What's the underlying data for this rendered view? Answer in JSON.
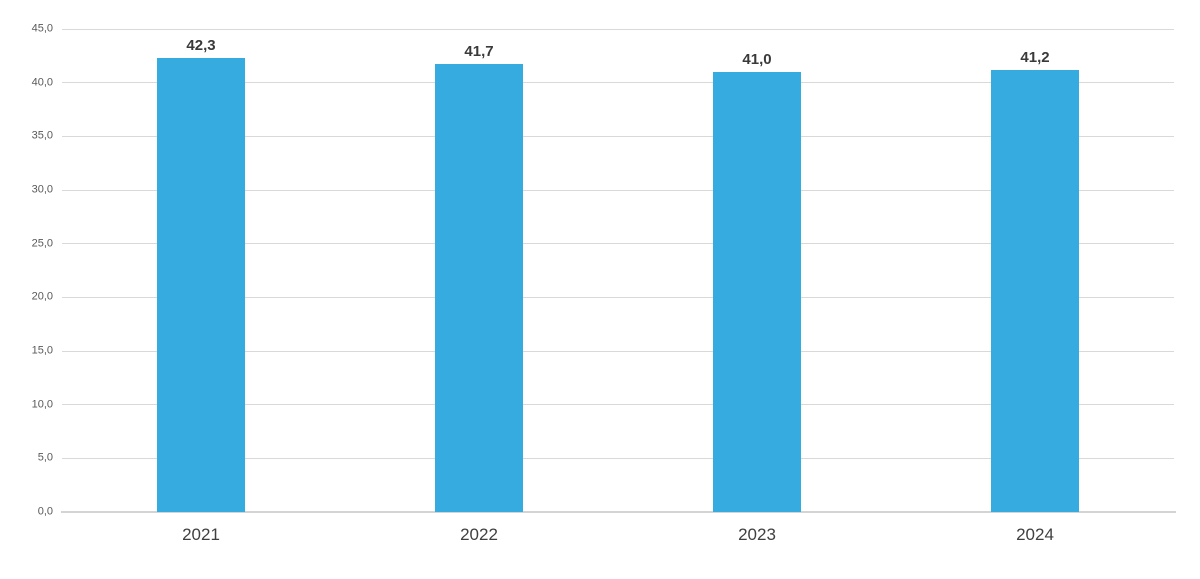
{
  "chart_data": {
    "type": "bar",
    "title": "",
    "xlabel": "",
    "ylabel": "",
    "categories": [
      "2021",
      "2022",
      "2023",
      "2024"
    ],
    "values": [
      42.3,
      41.7,
      41.0,
      41.2
    ],
    "value_labels": [
      "42,3",
      "41,7",
      "41,0",
      "41,2"
    ],
    "ylim": [
      0,
      45
    ],
    "y_tick_step": 5,
    "y_ticks": [
      {
        "value": 0,
        "label": "0,0"
      },
      {
        "value": 5,
        "label": "5,0"
      },
      {
        "value": 10,
        "label": "10,0"
      },
      {
        "value": 15,
        "label": "15,0"
      },
      {
        "value": 20,
        "label": "20,0"
      },
      {
        "value": 25,
        "label": "25,0"
      },
      {
        "value": 30,
        "label": "30,0"
      },
      {
        "value": 35,
        "label": "35,0"
      },
      {
        "value": 40,
        "label": "40,0"
      },
      {
        "value": 45,
        "label": "45,0"
      }
    ],
    "grid": "horizontal",
    "legend": "none",
    "decimal_separator": ",",
    "colors": {
      "bar": "#36abe0",
      "gridline": "#d9d9d9",
      "axis_line": "#d4d4d4",
      "value_label": "#3a3a3a",
      "y_tick_label": "#595959",
      "x_tick_label": "#404040",
      "background": "#ffffff"
    }
  }
}
